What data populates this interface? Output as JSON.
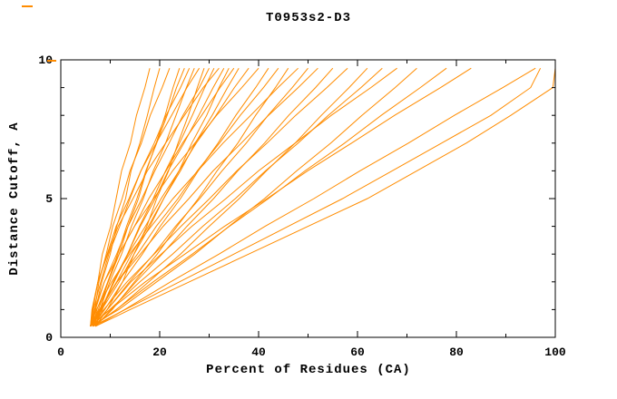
{
  "chart_data": {
    "type": "line",
    "title": "T0953s2-D3",
    "xlabel": "Percent of Residues (CA)",
    "ylabel": "Distance Cutoff, A",
    "xlim": [
      0,
      100
    ],
    "ylim": [
      0,
      10
    ],
    "x_major_ticks": [
      0,
      20,
      40,
      60,
      80,
      100
    ],
    "x_minor_step": 10,
    "y_major_ticks": [
      0,
      5,
      10
    ],
    "y_minor_step": 1,
    "grid": false,
    "legend": "none",
    "line_color": "#ff8c00",
    "axis_color": "#000000",
    "y_points": [
      0.4,
      1,
      2,
      3,
      4,
      5,
      6,
      7,
      8,
      9,
      9.7
    ],
    "series_x": [
      [
        6.0,
        6.5,
        7.5,
        8.4,
        10.1,
        11.2,
        12.3,
        14.1,
        15.3,
        17.0,
        18.0
      ],
      [
        6.0,
        7.0,
        8.3,
        10.0,
        11.3,
        13.1,
        14.2,
        16.0,
        17.5,
        18.9,
        20.0
      ],
      [
        6.5,
        6.9,
        7.7,
        9.2,
        10.5,
        12.4,
        14.0,
        16.3,
        18.1,
        20.5,
        22.0
      ],
      [
        6.0,
        7.6,
        9.6,
        11.8,
        13.6,
        15.7,
        17.3,
        19.3,
        21.1,
        22.7,
        24.0
      ],
      [
        7.0,
        8.0,
        9.5,
        11.5,
        13.3,
        15.4,
        17.2,
        19.4,
        21.5,
        23.4,
        25.0
      ],
      [
        6.0,
        6.6,
        8.1,
        9.7,
        11.9,
        14.0,
        16.2,
        18.9,
        21.3,
        24.2,
        26.0
      ],
      [
        6.5,
        7.9,
        9.9,
        12.3,
        14.3,
        16.7,
        18.7,
        21.2,
        23.3,
        25.4,
        27.0
      ],
      [
        6.0,
        6.4,
        7.5,
        9.4,
        11.2,
        13.8,
        16.2,
        19.3,
        22.4,
        25.5,
        28.0
      ],
      [
        7.0,
        9.4,
        12.5,
        14.8,
        17.4,
        19.4,
        21.8,
        23.7,
        25.8,
        27.6,
        29.0
      ],
      [
        6.0,
        7.0,
        8.8,
        11.3,
        13.6,
        16.4,
        19.0,
        21.9,
        24.7,
        28.0,
        30.0
      ],
      [
        6.5,
        8.2,
        10.6,
        13.5,
        15.9,
        18.7,
        21.2,
        24.0,
        26.6,
        29.1,
        31.0
      ],
      [
        6.0,
        6.3,
        7.5,
        9.5,
        11.6,
        14.6,
        17.5,
        21.2,
        25.0,
        28.8,
        32.0
      ],
      [
        7.0,
        8.4,
        10.7,
        13.5,
        16.1,
        19.1,
        21.7,
        24.9,
        27.9,
        30.8,
        33.0
      ],
      [
        6.0,
        8.3,
        11.8,
        14.8,
        18.0,
        20.8,
        23.9,
        26.5,
        29.5,
        32.0,
        34.0
      ],
      [
        6.5,
        7.3,
        9.5,
        11.8,
        14.9,
        17.8,
        21.3,
        24.6,
        28.5,
        32.2,
        35.0
      ],
      [
        6.0,
        7.9,
        11.3,
        14.3,
        17.7,
        20.8,
        24.2,
        27.2,
        30.6,
        33.7,
        36.0
      ],
      [
        7.0,
        8.1,
        10.8,
        13.6,
        17.1,
        20.3,
        23.9,
        27.4,
        31.4,
        35.1,
        38.0
      ],
      [
        6.0,
        6.8,
        8.8,
        11.8,
        14.9,
        18.8,
        22.6,
        27.1,
        31.5,
        36.6,
        40.0
      ],
      [
        6.5,
        8.9,
        12.5,
        16.5,
        20.1,
        24.2,
        27.8,
        31.8,
        35.4,
        39.4,
        42.0
      ],
      [
        6.0,
        8.0,
        11.4,
        15.5,
        19.3,
        23.7,
        27.6,
        32.1,
        36.3,
        41.0,
        44.0
      ],
      [
        7.0,
        10.4,
        14.9,
        19.5,
        23.5,
        27.8,
        31.6,
        35.8,
        39.4,
        43.4,
        46.0
      ],
      [
        6.0,
        7.2,
        10.3,
        13.9,
        18.3,
        22.7,
        27.7,
        32.8,
        38.4,
        43.9,
        48.0
      ],
      [
        6.5,
        9.4,
        13.9,
        18.8,
        23.2,
        28.1,
        32.6,
        37.5,
        41.9,
        46.8,
        50.0
      ],
      [
        6.0,
        7.8,
        11.4,
        16.1,
        20.7,
        25.9,
        30.8,
        36.5,
        42.0,
        48.0,
        52.0
      ],
      [
        7.0,
        10.2,
        15.2,
        20.5,
        25.5,
        30.9,
        35.8,
        41.2,
        46.1,
        51.5,
        55.0
      ],
      [
        6.0,
        8.7,
        13.4,
        18.9,
        24.3,
        30.1,
        35.6,
        41.7,
        47.5,
        53.8,
        58.0
      ],
      [
        6.5,
        11.3,
        17.8,
        24.2,
        30.0,
        36.1,
        41.6,
        47.4,
        52.7,
        58.3,
        62.0
      ],
      [
        6.0,
        9.9,
        16.0,
        22.6,
        28.7,
        35.3,
        41.4,
        48.0,
        54.1,
        60.7,
        65.0
      ],
      [
        7.0,
        9.4,
        14.2,
        20.3,
        26.5,
        33.4,
        40.0,
        47.4,
        54.7,
        62.7,
        68.0
      ],
      [
        6.0,
        11.7,
        19.4,
        27.1,
        34.0,
        41.2,
        47.7,
        54.6,
        60.9,
        67.6,
        72.0
      ],
      [
        6.5,
        11.2,
        18.7,
        26.6,
        34.1,
        42.0,
        49.4,
        57.4,
        64.8,
        72.7,
        78.0
      ],
      [
        6.0,
        10.0,
        17.1,
        25.1,
        33.1,
        41.7,
        49.9,
        58.8,
        67.5,
        76.8,
        83.0
      ],
      [
        7.0,
        12.9,
        22.2,
        32.0,
        41.3,
        51.2,
        60.5,
        70.3,
        79.6,
        89.4,
        96.0
      ],
      [
        6.5,
        13.0,
        24.0,
        35.0,
        46.0,
        57.0,
        67.0,
        77.0,
        87.0,
        95.0,
        97.0
      ],
      [
        7.0,
        14.0,
        26.0,
        38.0,
        50.0,
        62.0,
        72.0,
        82.0,
        91.0,
        99.5,
        100.0
      ]
    ],
    "stray_marks": [
      [
        24,
        6,
        12,
        2
      ],
      [
        52,
        66,
        10,
        2
      ]
    ]
  }
}
